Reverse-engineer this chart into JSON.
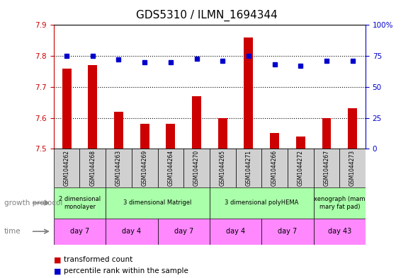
{
  "title": "GDS5310 / ILMN_1694344",
  "samples": [
    "GSM1044262",
    "GSM1044268",
    "GSM1044263",
    "GSM1044269",
    "GSM1044264",
    "GSM1044270",
    "GSM1044265",
    "GSM1044271",
    "GSM1044266",
    "GSM1044272",
    "GSM1044267",
    "GSM1044273"
  ],
  "transformed_counts": [
    7.76,
    7.77,
    7.62,
    7.58,
    7.58,
    7.67,
    7.6,
    7.86,
    7.55,
    7.54,
    7.6,
    7.63
  ],
  "percentile_ranks": [
    75,
    75,
    72,
    70,
    70,
    73,
    71,
    75,
    68,
    67,
    71,
    71
  ],
  "ylim_left": [
    7.5,
    7.9
  ],
  "ylim_right": [
    0,
    100
  ],
  "yticks_left": [
    7.5,
    7.6,
    7.7,
    7.8,
    7.9
  ],
  "yticks_right": [
    0,
    25,
    50,
    75,
    100
  ],
  "bar_color": "#cc0000",
  "dot_color": "#0000cc",
  "growth_protocol_groups": [
    {
      "label": "2 dimensional\nmonolayer",
      "start": 0,
      "end": 2,
      "color": "#aaffaa"
    },
    {
      "label": "3 dimensional Matrigel",
      "start": 2,
      "end": 6,
      "color": "#aaffaa"
    },
    {
      "label": "3 dimensional polyHEMA",
      "start": 6,
      "end": 10,
      "color": "#aaffaa"
    },
    {
      "label": "xenograph (mam\nmary fat pad)",
      "start": 10,
      "end": 12,
      "color": "#aaffaa"
    }
  ],
  "time_groups": [
    {
      "label": "day 7",
      "start": 0,
      "end": 2,
      "color": "#ff88ff"
    },
    {
      "label": "day 4",
      "start": 2,
      "end": 4,
      "color": "#ff88ff"
    },
    {
      "label": "day 7",
      "start": 4,
      "end": 6,
      "color": "#ff88ff"
    },
    {
      "label": "day 4",
      "start": 6,
      "end": 8,
      "color": "#ff88ff"
    },
    {
      "label": "day 7",
      "start": 8,
      "end": 10,
      "color": "#ff88ff"
    },
    {
      "label": "day 43",
      "start": 10,
      "end": 12,
      "color": "#ff88ff"
    }
  ],
  "left_axis_color": "#cc0000",
  "right_axis_color": "#0000cc",
  "title_fontsize": 11,
  "tick_fontsize": 7.5,
  "bar_width": 0.35
}
